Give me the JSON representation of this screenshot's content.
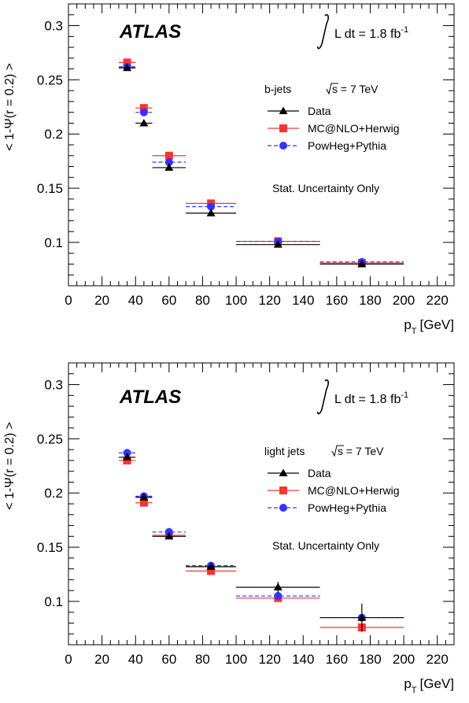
{
  "colors": {
    "data": "#000000",
    "mcnlo": "#ff3333",
    "powheg": "#3333ff"
  },
  "chart_data": [
    {
      "type": "scatter",
      "title": "",
      "experiment_label": "ATLAS",
      "lumi_label": "L dt = 1.8 fb",
      "lumi_sup": "-1",
      "sample_label": "b-jets",
      "energy_label": "s = 7 TeV",
      "note": "Stat. Uncertainty Only",
      "xlabel": "[GeV]",
      "xlabel_symbol": "p",
      "xlabel_sub": "T",
      "ylabel": "< 1-Ψ(r = 0.2) >",
      "xlim": [
        0,
        230
      ],
      "ylim": [
        0.06,
        0.32
      ],
      "xticks": [
        "0",
        "20",
        "40",
        "60",
        "80",
        "100",
        "120",
        "140",
        "160",
        "180",
        "200",
        "220"
      ],
      "yticks": [
        "0.1",
        "0.15",
        "0.2",
        "0.25",
        "0.3"
      ],
      "bins": [
        [
          30,
          40
        ],
        [
          40,
          50
        ],
        [
          50,
          70
        ],
        [
          70,
          100
        ],
        [
          100,
          150
        ],
        [
          150,
          200
        ]
      ],
      "series": [
        {
          "name": "Data",
          "key": "data",
          "marker": "triangle",
          "values": [
            0.261,
            0.21,
            0.169,
            0.127,
            0.098,
            0.08
          ],
          "errors": [
            0.002,
            0.002,
            0.002,
            0.002,
            0.002,
            0.002
          ]
        },
        {
          "name": "MC@NLO+Herwig",
          "key": "mcnlo",
          "marker": "square",
          "values": [
            0.266,
            0.224,
            0.18,
            0.136,
            0.101,
            0.081
          ],
          "errors": [
            0.002,
            0.002,
            0.002,
            0.001,
            0.001,
            0.001
          ]
        },
        {
          "name": "PowHeg+Pythia",
          "key": "powheg",
          "marker": "circle",
          "values": [
            0.262,
            0.22,
            0.174,
            0.133,
            0.101,
            0.082
          ],
          "errors": [
            0.002,
            0.002,
            0.002,
            0.001,
            0.001,
            0.001
          ]
        }
      ]
    },
    {
      "type": "scatter",
      "title": "",
      "experiment_label": "ATLAS",
      "lumi_label": "L dt = 1.8 fb",
      "lumi_sup": "-1",
      "sample_label": "light jets",
      "energy_label": "s = 7 TeV",
      "note": "Stat. Uncertainty Only",
      "xlabel": "[GeV]",
      "xlabel_symbol": "p",
      "xlabel_sub": "T",
      "ylabel": "< 1-Ψ(r = 0.2) >",
      "xlim": [
        0,
        230
      ],
      "ylim": [
        0.06,
        0.32
      ],
      "xticks": [
        "0",
        "20",
        "40",
        "60",
        "80",
        "100",
        "120",
        "140",
        "160",
        "180",
        "200",
        "220"
      ],
      "yticks": [
        "0.1",
        "0.15",
        "0.2",
        "0.25",
        "0.3"
      ],
      "bins": [
        [
          30,
          40
        ],
        [
          40,
          50
        ],
        [
          50,
          70
        ],
        [
          70,
          100
        ],
        [
          100,
          150
        ],
        [
          150,
          200
        ]
      ],
      "series": [
        {
          "name": "Data",
          "key": "data",
          "marker": "triangle",
          "values": [
            0.233,
            0.196,
            0.16,
            0.132,
            0.113,
            0.085
          ],
          "errors": [
            0.002,
            0.002,
            0.002,
            0.002,
            0.005,
            0.013
          ]
        },
        {
          "name": "MC@NLO+Herwig",
          "key": "mcnlo",
          "marker": "square",
          "values": [
            0.23,
            0.191,
            0.161,
            0.128,
            0.103,
            0.076
          ],
          "errors": [
            0.002,
            0.002,
            0.001,
            0.001,
            0.002,
            0.003
          ]
        },
        {
          "name": "PowHeg+Pythia",
          "key": "powheg",
          "marker": "circle",
          "values": [
            0.237,
            0.197,
            0.164,
            0.133,
            0.105,
            0.085
          ],
          "errors": [
            0.002,
            0.002,
            0.001,
            0.001,
            0.002,
            0.003
          ]
        }
      ]
    }
  ]
}
